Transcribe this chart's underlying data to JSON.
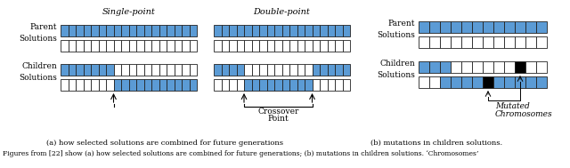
{
  "blue": "#5B9BD5",
  "white": "#FFFFFF",
  "black": "#000000",
  "bg": "#FFFFFF",
  "caption_a": "(a) how selected solutions are combined for future generations",
  "caption_b": "(b) mutations in children solutions.",
  "bottom_text": "Figures from [22] show (a) how selected solutions are combined for future generations; (b) mutations in children solutions. ‘Chromosomes’"
}
